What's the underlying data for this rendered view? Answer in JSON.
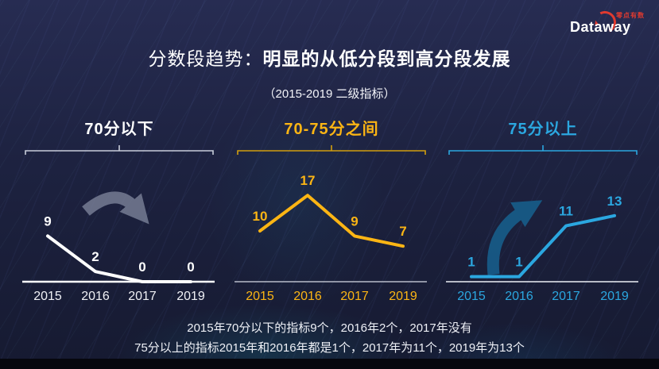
{
  "header": {
    "title_normal": "分数段趋势：",
    "title_bold": "明显的从低分段到高分段发展",
    "subtitle": "（2015-2019 二级指标）"
  },
  "logo": {
    "brand": "Dataway",
    "tagline": "零点有数",
    "accent_color": "#e03a2f"
  },
  "footer": {
    "line1": "2015年70分以下的指标9个，2016年2个，2017年没有",
    "line2": "75分以上的指标2015年和2016年都是1个，2017年为11个，2019年为13个"
  },
  "chart_data": [
    {
      "type": "line",
      "title": "70分以下",
      "categories": [
        "2015",
        "2016",
        "2017",
        "2019"
      ],
      "values": [
        9,
        2,
        0,
        0
      ],
      "ylim": [
        0,
        18
      ],
      "grid": false,
      "legend": "none",
      "title_color": "#ffffff",
      "line_color": "#ffffff",
      "label_color": "#ffffff",
      "tick_color": "#f0f1f6",
      "axis_color": "#ffffff",
      "axis_width": 2.4,
      "bracket_color": "#c9cdda",
      "arrow": {
        "direction": "down",
        "color": "#7b8299",
        "opacity": 0.8
      }
    },
    {
      "type": "line",
      "title": "70-75分之间",
      "categories": [
        "2015",
        "2016",
        "2017",
        "2019"
      ],
      "values": [
        10,
        17,
        9,
        7
      ],
      "ylim": [
        0,
        18
      ],
      "grid": false,
      "legend": "none",
      "title_color": "#fcb514",
      "line_color": "#fcb514",
      "label_color": "#fcb514",
      "tick_color": "#fcb514",
      "axis_color": "#d8dbe6",
      "axis_width": 1.3,
      "bracket_color": "#d29e0e",
      "arrow": null
    },
    {
      "type": "line",
      "title": "75分以上",
      "categories": [
        "2015",
        "2016",
        "2017",
        "2019"
      ],
      "values": [
        1,
        1,
        11,
        13
      ],
      "ylim": [
        0,
        18
      ],
      "grid": false,
      "legend": "none",
      "title_color": "#2ba7e0",
      "line_color": "#2ba7e0",
      "label_color": "#2ba7e0",
      "tick_color": "#2ba7e0",
      "axis_color": "#eef0f6",
      "axis_width": 1.5,
      "bracket_color": "#2ba7e0",
      "arrow": {
        "direction": "up",
        "color": "#175a86",
        "opacity": 0.95
      }
    }
  ]
}
